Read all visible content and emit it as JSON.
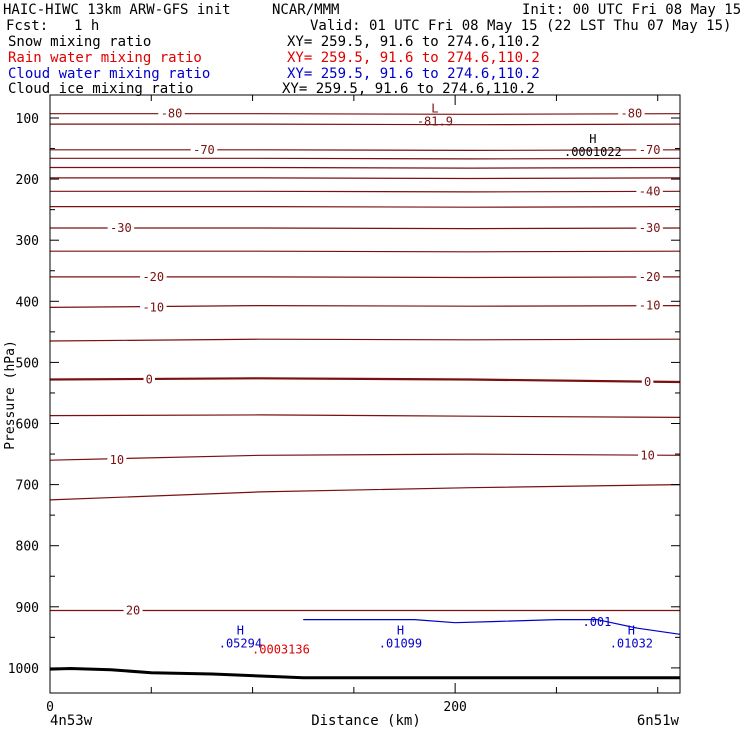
{
  "header": {
    "title": "HAIC-HIWC 13km ARW-GFS init",
    "org": "NCAR/MMM",
    "init": "Init: 00 UTC Fri 08 May 15",
    "fcst_label": "Fcst:",
    "fcst_value": "1 h",
    "valid": "Valid: 01 UTC Fri 08 May 15 (22 LST Thu 07 May 15)",
    "fields": [
      {
        "name": "Snow mixing ratio",
        "xy": "XY= 259.5, 91.6 to 274.6,110.2",
        "color": "#000000"
      },
      {
        "name": "Rain water mixing ratio",
        "xy": "XY= 259.5, 91.6 to 274.6,110.2",
        "color": "#e00000"
      },
      {
        "name": "Cloud water mixing ratio",
        "xy": "XY= 259.5, 91.6 to 274.6,110.2",
        "color": "#0000cc"
      },
      {
        "name": "Cloud ice mixing ratio",
        "xy": "XY= 259.5, 91.6 to 274.6,110.2",
        "color": "#000000"
      }
    ]
  },
  "chart_data": {
    "type": "line",
    "ylabel": "Pressure (hPa)",
    "xlabel": "Distance (km)",
    "x_left_label": "4n53w",
    "x_right_label": "6n51w",
    "xlim": [
      0,
      311
    ],
    "ylim": [
      1050,
      70
    ],
    "y_ticks": [
      100,
      200,
      300,
      400,
      500,
      600,
      700,
      800,
      900,
      1000
    ],
    "x_ticks": [
      0,
      200
    ],
    "grid": false,
    "temperature_color": "#7a1010",
    "temperature_contours": [
      {
        "label": "-80",
        "p": [
          93,
          93,
          94,
          93
        ]
      },
      {
        "label": "",
        "p": [
          110,
          110,
          111,
          110
        ]
      },
      {
        "label": "-70",
        "p": [
          152,
          152,
          153,
          152
        ]
      },
      {
        "label": "",
        "p": [
          166,
          166,
          167,
          166
        ]
      },
      {
        "label": "",
        "p": [
          181,
          181,
          182,
          181
        ]
      },
      {
        "label": "",
        "p": [
          198,
          198,
          199,
          198
        ]
      },
      {
        "label": "-40",
        "p": [
          220,
          220,
          221,
          220
        ]
      },
      {
        "label": "",
        "p": [
          245,
          245,
          246,
          245
        ]
      },
      {
        "label": "-30",
        "p": [
          280,
          280,
          281,
          280
        ]
      },
      {
        "label": "",
        "p": [
          318,
          318,
          319,
          318
        ]
      },
      {
        "label": "-20",
        "p": [
          360,
          360,
          361,
          360
        ]
      },
      {
        "label": "-10",
        "p": [
          410,
          407,
          408,
          407
        ]
      },
      {
        "label": "",
        "p": [
          465,
          462,
          463,
          462
        ]
      },
      {
        "label": "0",
        "p": [
          528,
          526,
          528,
          532
        ]
      },
      {
        "label": "",
        "p": [
          587,
          586,
          588,
          590
        ]
      },
      {
        "label": "10",
        "p": [
          660,
          652,
          650,
          652
        ]
      },
      {
        "label": "",
        "p": [
          725,
          712,
          705,
          700
        ]
      },
      {
        "label": "20",
        "p": [
          906,
          906,
          906,
          906
        ]
      }
    ],
    "temperature_labels": [
      {
        "text": "-80",
        "x": 60,
        "p": 93
      },
      {
        "text": "-80",
        "x": 287,
        "p": 93
      },
      {
        "text": "-70",
        "x": 76,
        "p": 152
      },
      {
        "text": "-70",
        "x": 296,
        "p": 152
      },
      {
        "text": "-40",
        "x": 296,
        "p": 220
      },
      {
        "text": "-30",
        "x": 35,
        "p": 280
      },
      {
        "text": "-30",
        "x": 296,
        "p": 280
      },
      {
        "text": "-20",
        "x": 51,
        "p": 360
      },
      {
        "text": "-20",
        "x": 296,
        "p": 360
      },
      {
        "text": "-10",
        "x": 51,
        "p": 410
      },
      {
        "text": "-10",
        "x": 296,
        "p": 407
      },
      {
        "text": "0",
        "x": 49,
        "p": 528
      },
      {
        "text": "0",
        "x": 295,
        "p": 532
      },
      {
        "text": "10",
        "x": 33,
        "p": 660
      },
      {
        "text": "10",
        "x": 295,
        "p": 652
      },
      {
        "text": "20",
        "x": 41,
        "p": 906
      }
    ],
    "extrema": [
      {
        "mark": "L",
        "value": "-81.9",
        "x": 190,
        "p": 91,
        "color": "#7a1010"
      },
      {
        "mark": "H",
        "value": ".0001022",
        "x": 268,
        "p": 141,
        "color": "#000000"
      },
      {
        "mark": "H",
        "value": ".05294",
        "x": 94,
        "p": 945,
        "color": "#0000cc"
      },
      {
        "mark": "H",
        "value": ".01099",
        "x": 173,
        "p": 945,
        "color": "#0000cc"
      },
      {
        "mark": "H",
        "value": ".01032",
        "x": 287,
        "p": 945,
        "color": "#0000cc"
      },
      {
        "mark": "",
        "value": ".0003136",
        "x": 114,
        "p": 970,
        "color": "#e00000"
      },
      {
        "mark": "",
        "value": ".001",
        "x": 270,
        "p": 925,
        "color": "#0000cc"
      }
    ],
    "cloud_water_contour": {
      "x": [
        125,
        155,
        180,
        200,
        220,
        250,
        270,
        290,
        311
      ],
      "p": [
        921,
        921,
        921,
        926,
        924,
        921,
        921,
        935,
        945
      ]
    },
    "terrain": {
      "x": [
        0,
        10,
        30,
        50,
        80,
        110,
        125,
        150,
        200,
        250,
        311
      ],
      "p": [
        1002,
        1001,
        1003,
        1008,
        1010,
        1014,
        1016,
        1016,
        1016,
        1016,
        1016
      ]
    }
  }
}
